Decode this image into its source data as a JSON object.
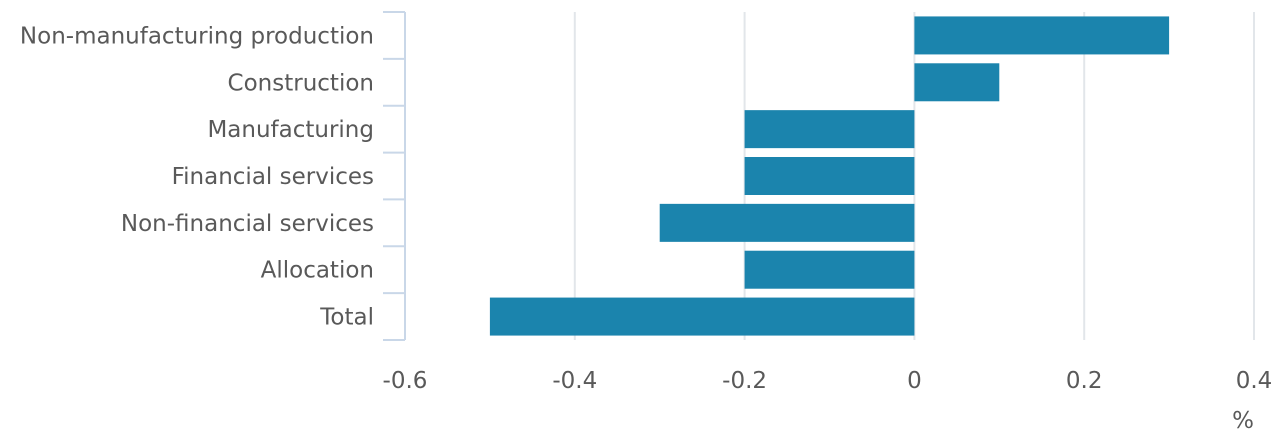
{
  "chart_data": {
    "type": "bar",
    "orientation": "horizontal",
    "categories": [
      "Non-manufacturing production",
      "Construction",
      "Manufacturing",
      "Financial services",
      "Non-financial services",
      "Allocation",
      "Total"
    ],
    "values": [
      0.3,
      0.1,
      -0.2,
      -0.2,
      -0.3,
      -0.2,
      -0.5
    ],
    "xlim": [
      -0.6,
      0.4
    ],
    "xticks": [
      -0.6,
      -0.4,
      -0.2,
      0,
      0.2,
      0.4
    ],
    "xtick_labels": [
      "-0.6",
      "-0.4",
      "-0.2",
      "0",
      "0.2",
      "0.4"
    ],
    "xlabel": "%",
    "title": "",
    "grid": "vertical",
    "legend": "none",
    "bar_color": "#1b84ad",
    "grid_color": "#e2e6ea",
    "axis_color": "#c9d7e8",
    "text_color": "#595959"
  }
}
